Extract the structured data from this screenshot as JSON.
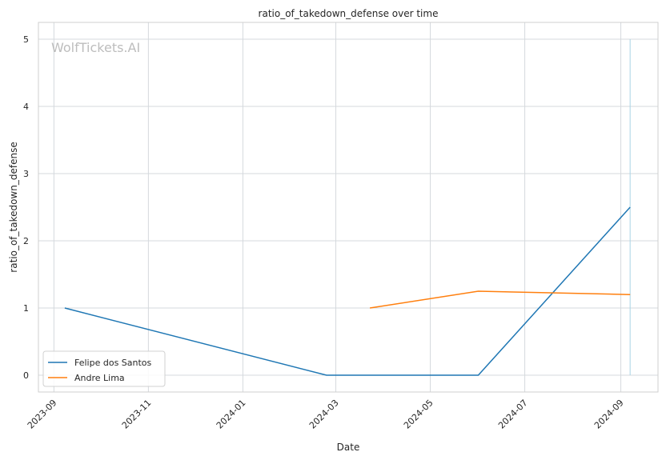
{
  "chart_data": {
    "type": "line",
    "title": "ratio_of_takedown_defense over time",
    "xlabel": "Date",
    "ylabel": "ratio_of_takedown_defense",
    "watermark": "WolfTickets.AI",
    "xlim": [
      "2023-08-22",
      "2024-09-25"
    ],
    "ylim": [
      -0.25,
      5.25
    ],
    "x_ticks": [
      "2023-09",
      "2023-11",
      "2024-01",
      "2024-03",
      "2024-05",
      "2024-07",
      "2024-09"
    ],
    "y_ticks": [
      0,
      1,
      2,
      3,
      4,
      5
    ],
    "grid": true,
    "legend": "lower-left",
    "series": [
      {
        "name": "Felipe dos Santos",
        "color": "#1f77b4",
        "x": [
          "2023-09-08",
          "2024-02-24",
          "2024-06-01",
          "2024-09-07"
        ],
        "y": [
          1,
          0,
          0,
          2.5
        ]
      },
      {
        "name": "Andre Lima",
        "color": "#ff7f0e",
        "x": [
          "2024-03-23",
          "2024-06-01",
          "2024-09-07"
        ],
        "y": [
          1,
          1.25,
          1.2
        ]
      }
    ],
    "marker_line": {
      "x": "2024-09-07",
      "y_from": 0,
      "y_to": 5,
      "color": "#a9d4e6"
    }
  }
}
